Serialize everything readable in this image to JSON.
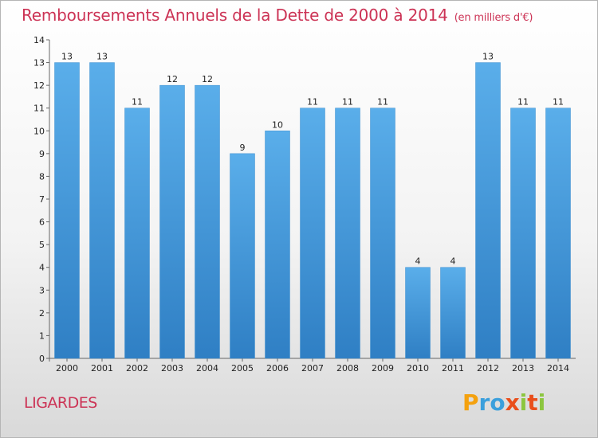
{
  "chart_data": {
    "type": "bar",
    "title": "Remboursements Annuels de la Dette de 2000 à 2014",
    "unit": "(en milliers d'€)",
    "categories": [
      "2000",
      "2001",
      "2002",
      "2003",
      "2004",
      "2005",
      "2006",
      "2007",
      "2008",
      "2009",
      "2010",
      "2011",
      "2012",
      "2013",
      "2014"
    ],
    "values": [
      13,
      13,
      11,
      12,
      12,
      9,
      10,
      11,
      11,
      11,
      4,
      4,
      13,
      11,
      11
    ],
    "ylim": [
      0,
      14
    ],
    "yticks": [
      0,
      1,
      2,
      3,
      4,
      5,
      6,
      7,
      8,
      9,
      10,
      11,
      12,
      13,
      14
    ],
    "xlabel": "",
    "ylabel": "",
    "bar_color_top": "#5aaeea",
    "bar_color_bottom": "#2f7fc4"
  },
  "commune": "LIGARDES",
  "logo": {
    "letters": [
      "P",
      "r",
      "o",
      "x",
      "i",
      "t",
      "i"
    ],
    "colors": [
      "#f4a10e",
      "#3a9fdc",
      "#3a9fdc",
      "#e94e1b",
      "#8cc63f",
      "#e94e1b",
      "#8cc63f"
    ]
  },
  "title_color": "#cc3355"
}
